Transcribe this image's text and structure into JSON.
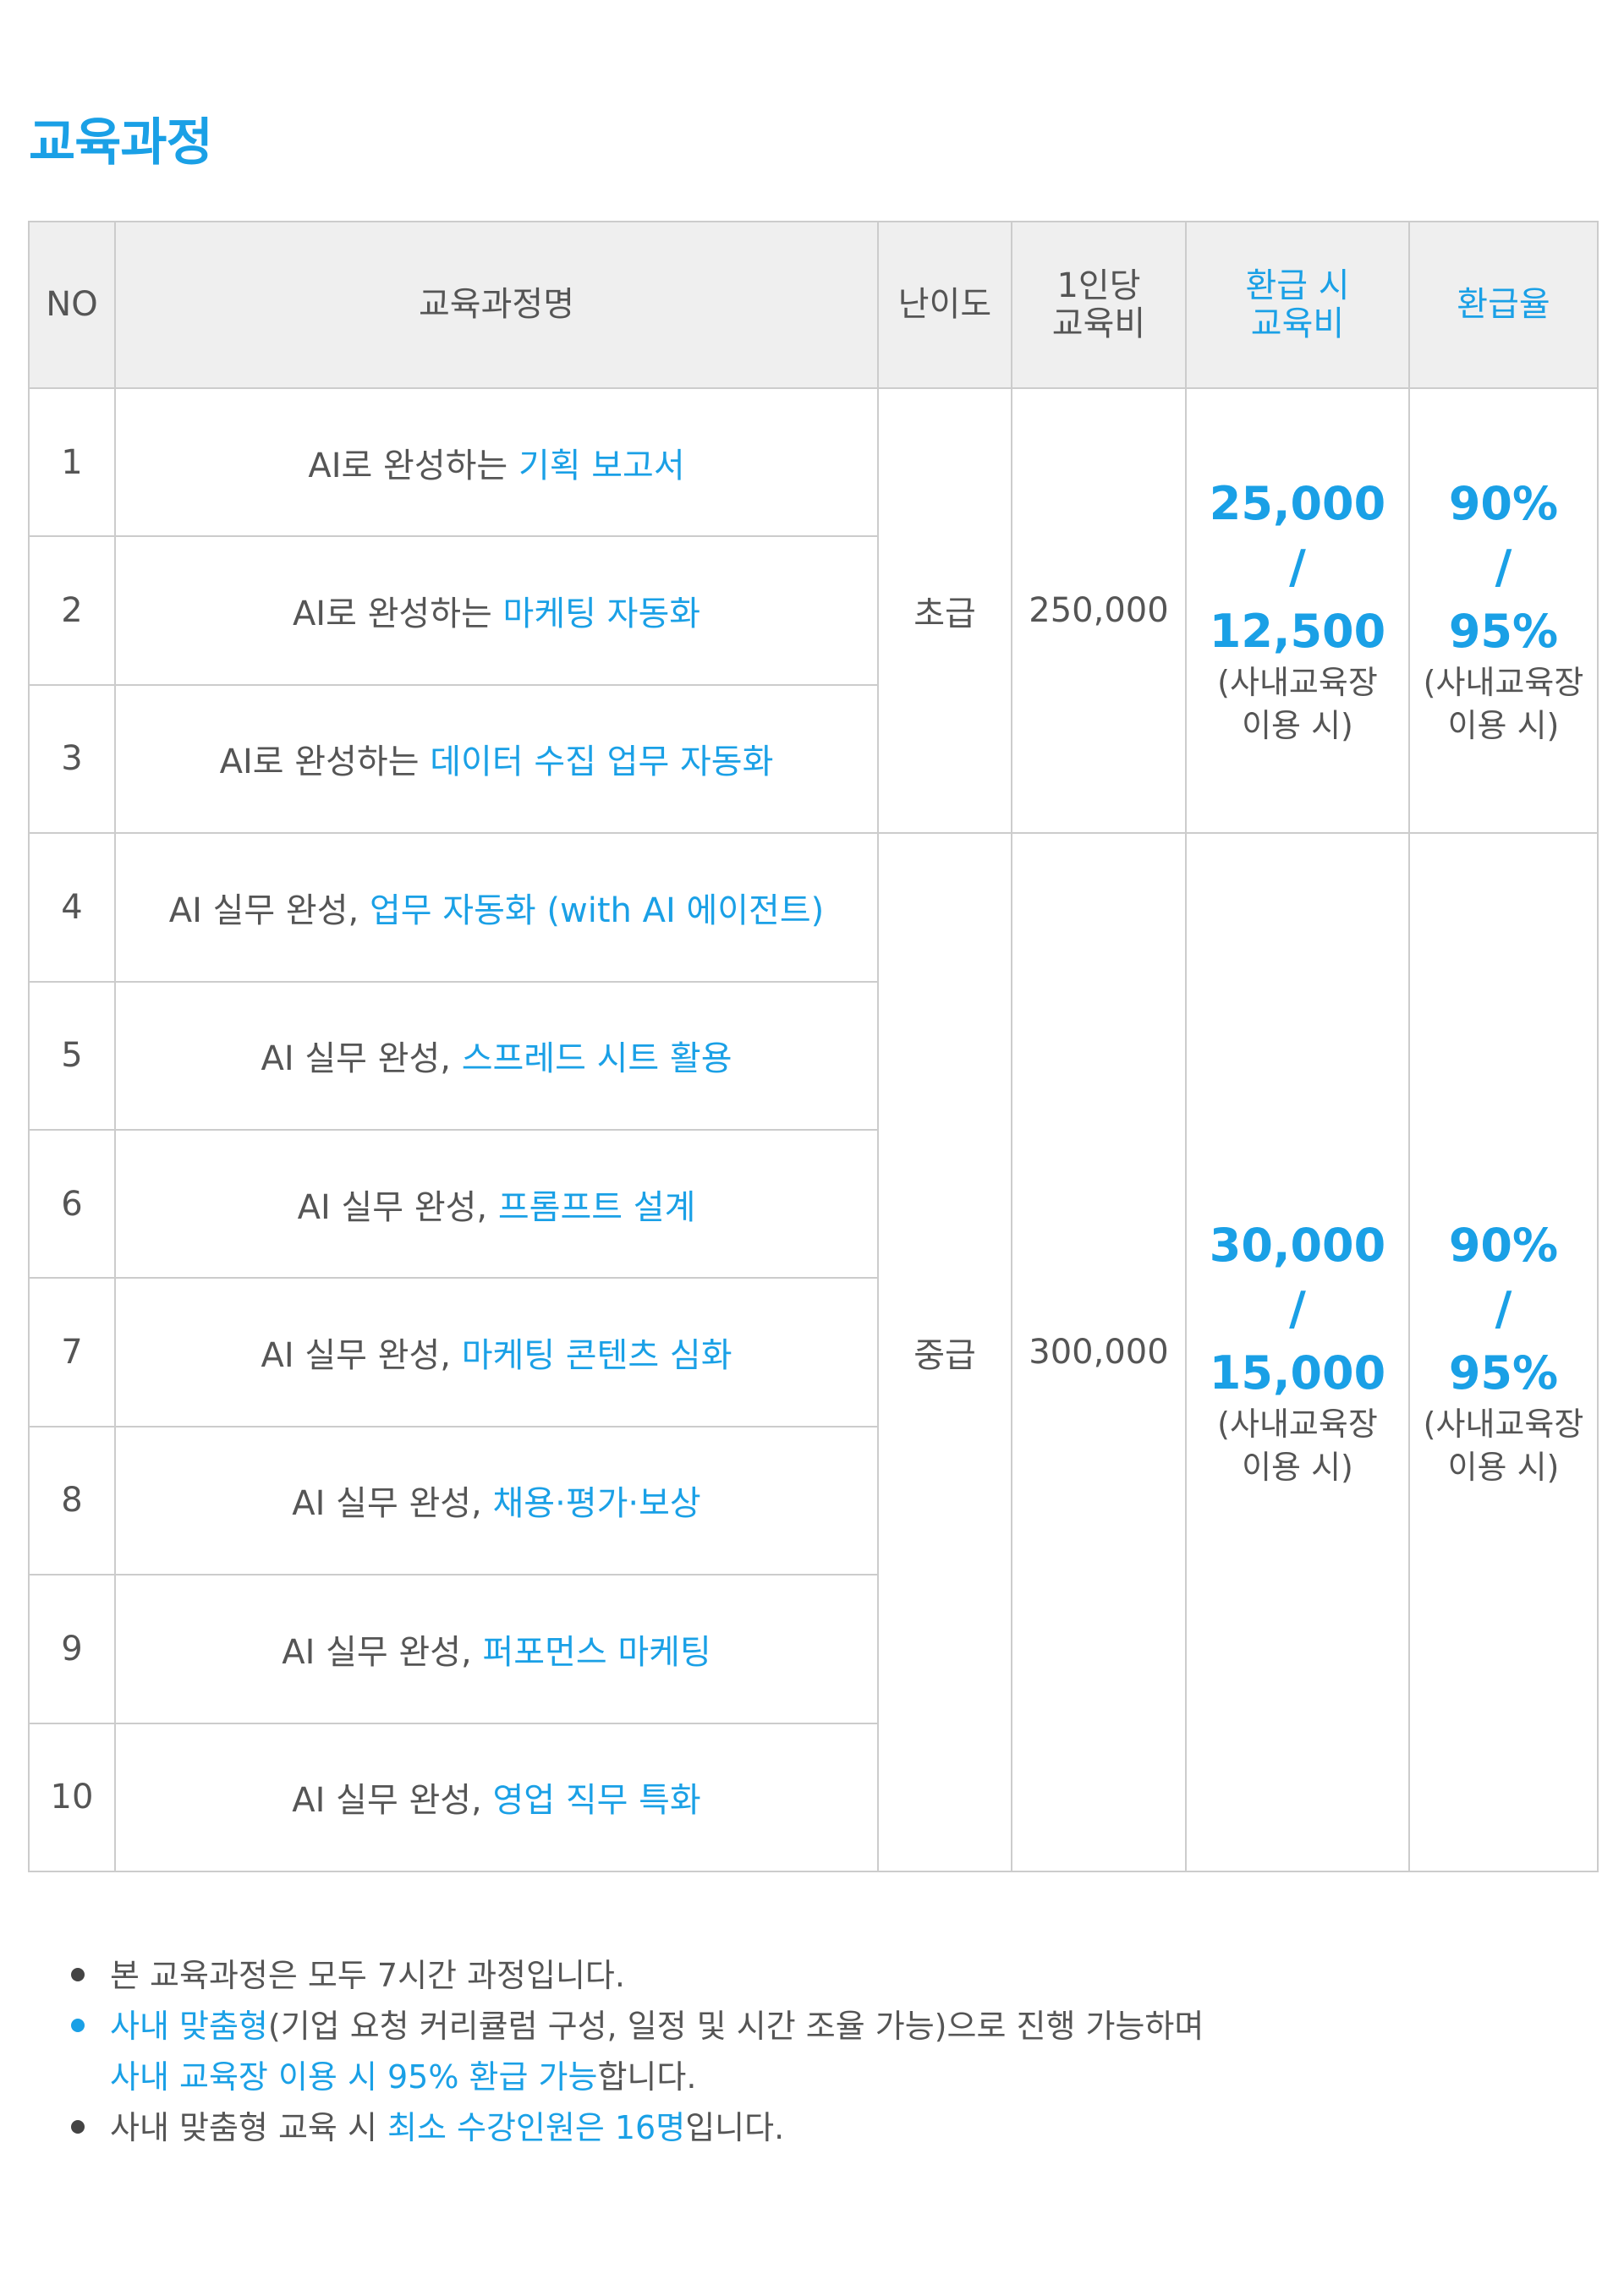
{
  "title": "교육과정",
  "table": {
    "headers": {
      "no": "NO",
      "name": "교육과정명",
      "level": "난이도",
      "fee_line1": "1인당",
      "fee_line2": "교육비",
      "refund_fee_line1": "환급 시",
      "refund_fee_line2": "교육비",
      "refund_rate": "환급율"
    },
    "rows": [
      {
        "no": "1",
        "prefix": "AI로 완성하는 ",
        "topic": "기획 보고서"
      },
      {
        "no": "2",
        "prefix": "AI로 완성하는 ",
        "topic": "마케팅 자동화"
      },
      {
        "no": "3",
        "prefix": "AI로 완성하는 ",
        "topic": "데이터 수집 업무 자동화"
      },
      {
        "no": "4",
        "prefix": "AI 실무 완성, ",
        "topic": "업무 자동화 (with AI 에이전트)"
      },
      {
        "no": "5",
        "prefix": "AI 실무 완성, ",
        "topic": "스프레드 시트 활용"
      },
      {
        "no": "6",
        "prefix": "AI 실무 완성, ",
        "topic": "프롬프트 설계"
      },
      {
        "no": "7",
        "prefix": "AI 실무 완성, ",
        "topic": "마케팅 콘텐츠 심화"
      },
      {
        "no": "8",
        "prefix": "AI 실무 완성, ",
        "topic": "채용·평가·보상"
      },
      {
        "no": "9",
        "prefix": "AI 실무 완성, ",
        "topic": "퍼포먼스 마케팅"
      },
      {
        "no": "10",
        "prefix": "AI 실무 완성, ",
        "topic": "영업 직무 특화"
      }
    ],
    "groups": [
      {
        "level": "초급",
        "fee": "250,000",
        "refund_fee": {
          "amount": "25,000",
          "slash": "/",
          "in_house": "12,500",
          "note_line1": "(사내교육장",
          "note_line2": "이용 시)"
        },
        "refund_rate": {
          "rate": "90%",
          "slash": "/",
          "in_house": "95%",
          "note_line1": "(사내교육장",
          "note_line2": "이용 시)"
        }
      },
      {
        "level": "중급",
        "fee": "300,000",
        "refund_fee": {
          "amount": "30,000",
          "slash": "/",
          "in_house": "15,000",
          "note_line1": "(사내교육장",
          "note_line2": "이용 시)"
        },
        "refund_rate": {
          "rate": "90%",
          "slash": "/",
          "in_house": "95%",
          "note_line1": "(사내교육장",
          "note_line2": "이용 시)"
        }
      }
    ]
  },
  "notes": {
    "item1": "본 교육과정은 모두 7시간 과정입니다.",
    "item2_highlight": "사내 맞춤형",
    "item2_rest": "(기업 요청 커리큘럼 구성, 일정 및 시간 조율 가능)으로 진행 가능하며",
    "item2_line2_highlight": "사내 교육장 이용 시 95% 환급 가능",
    "item2_line2_rest": "합니다.",
    "item3_prefix": "사내 맞춤형 교육 시 ",
    "item3_highlight": "최소 수강인원은 16명",
    "item3_suffix": "입니다."
  },
  "colors": {
    "accent": "#1aa0e6",
    "text": "#555555",
    "header_bg": "#efefef",
    "border": "#cccccc"
  }
}
